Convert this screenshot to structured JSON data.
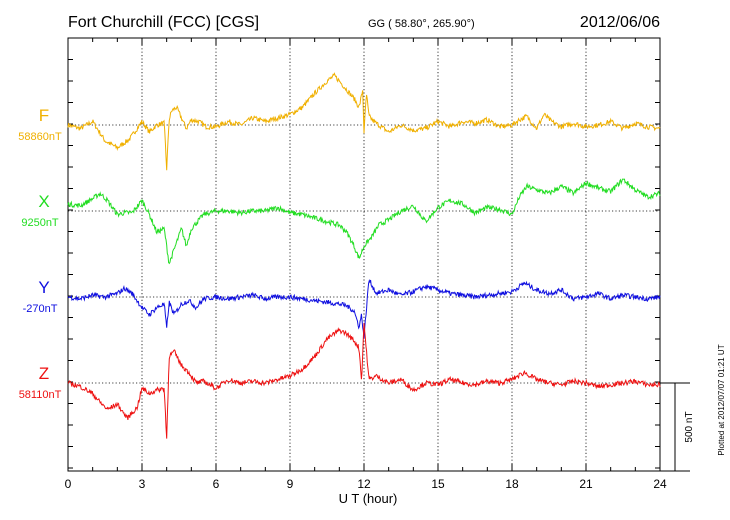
{
  "header": {
    "station": "Fort Churchill (FCC)  [CGS]",
    "coords": "GG ( 58.80°, 265.90°)",
    "date": "2012/06/06"
  },
  "footer_note": "Plotted at 2012/07/07 01:21  UT",
  "scale_label": "500 nT",
  "chart_data": {
    "type": "line",
    "xlabel": "U T (hour)",
    "ylabel": "",
    "xlim": [
      0,
      24
    ],
    "x_ticks": [
      0,
      3,
      6,
      9,
      12,
      15,
      18,
      21,
      24
    ],
    "x_tick_labels": [
      "0",
      "3",
      "6",
      "9",
      "12",
      "15",
      "18",
      "21",
      "24"
    ],
    "grid": true,
    "scale_bar_nT": 500,
    "series": [
      {
        "name": "F",
        "baseline_label": "58860nT",
        "baseline_nT": 58860,
        "color": "#f0b000",
        "x": [
          0,
          0.5,
          1,
          1.5,
          2,
          2.5,
          2.8,
          3,
          3.3,
          3.6,
          3.9,
          4.0,
          4.1,
          4.2,
          4.4,
          4.6,
          4.8,
          5,
          5.3,
          5.6,
          6,
          6.5,
          7,
          7.5,
          8,
          8.5,
          9,
          9.5,
          10,
          10.5,
          10.8,
          11,
          11.3,
          11.6,
          11.8,
          11.95,
          12.0,
          12.1,
          12.2,
          12.4,
          12.7,
          13,
          13.5,
          14,
          14.5,
          15,
          15.5,
          16,
          16.5,
          17,
          17.5,
          18,
          18.3,
          18.6,
          19,
          19.3,
          19.6,
          20,
          20.5,
          21,
          21.5,
          22,
          22.5,
          23,
          23.5,
          24
        ],
        "values": [
          0,
          -20,
          20,
          -90,
          -130,
          -80,
          -20,
          20,
          -40,
          0,
          10,
          -250,
          30,
          80,
          100,
          40,
          -20,
          30,
          20,
          -10,
          -10,
          20,
          0,
          40,
          20,
          40,
          60,
          100,
          180,
          250,
          280,
          250,
          200,
          150,
          100,
          200,
          -40,
          180,
          50,
          20,
          -10,
          -40,
          0,
          -30,
          -20,
          20,
          -10,
          20,
          10,
          30,
          -10,
          0,
          30,
          50,
          -20,
          60,
          20,
          -10,
          10,
          -10,
          0,
          20,
          -20,
          10,
          -10,
          -20
        ]
      },
      {
        "name": "X",
        "baseline_label": "9250nT",
        "baseline_nT": 9250,
        "color": "#22dd22",
        "x": [
          0,
          0.5,
          1,
          1.3,
          1.6,
          2,
          2.3,
          2.6,
          3,
          3.3,
          3.6,
          3.9,
          4.0,
          4.1,
          4.3,
          4.6,
          4.8,
          5,
          5.5,
          6,
          6.5,
          7,
          7.5,
          8,
          8.5,
          9,
          9.5,
          10,
          10.5,
          11,
          11.3,
          11.6,
          11.8,
          12,
          12.3,
          12.6,
          13,
          13.5,
          14,
          14.5,
          15,
          15.5,
          16,
          16.5,
          17,
          17.5,
          18,
          18.3,
          18.6,
          19,
          19.5,
          20,
          20.5,
          21,
          21.5,
          22,
          22.5,
          23,
          23.5,
          24
        ],
        "values": [
          40,
          30,
          70,
          100,
          60,
          -20,
          -10,
          -10,
          60,
          -20,
          -120,
          -100,
          -200,
          -300,
          -220,
          -100,
          -200,
          -100,
          -20,
          0,
          0,
          -10,
          0,
          0,
          20,
          -10,
          -20,
          -40,
          -60,
          -80,
          -120,
          -200,
          -270,
          -200,
          -150,
          -80,
          -50,
          0,
          30,
          -60,
          20,
          60,
          40,
          -10,
          20,
          10,
          -20,
          80,
          140,
          120,
          100,
          140,
          100,
          160,
          130,
          110,
          180,
          120,
          80,
          100
        ]
      },
      {
        "name": "Y",
        "baseline_label": "-270nT",
        "baseline_nT": -270,
        "color": "#1010e0",
        "x": [
          0,
          0.5,
          1,
          1.5,
          2,
          2.3,
          2.6,
          3,
          3.3,
          3.6,
          3.9,
          4.0,
          4.1,
          4.3,
          4.6,
          4.9,
          5.2,
          5.5,
          6,
          6.5,
          7,
          7.5,
          8,
          8.5,
          9,
          9.5,
          10,
          10.5,
          11,
          11.3,
          11.6,
          11.8,
          11.9,
          12.0,
          12.2,
          12.5,
          13,
          13.5,
          14,
          14.5,
          15,
          15.5,
          16,
          16.5,
          17,
          17.5,
          18,
          18.5,
          19,
          19.5,
          20,
          20.5,
          21,
          21.5,
          22,
          22.5,
          23,
          23.5,
          24
        ],
        "values": [
          0,
          -10,
          10,
          0,
          20,
          50,
          20,
          -60,
          -100,
          -60,
          -40,
          -180,
          -30,
          -100,
          -40,
          -20,
          -60,
          -10,
          0,
          -10,
          0,
          10,
          -10,
          0,
          0,
          -10,
          -20,
          -30,
          -40,
          -50,
          -80,
          -170,
          -100,
          -230,
          100,
          20,
          40,
          10,
          30,
          60,
          40,
          20,
          10,
          0,
          10,
          20,
          30,
          80,
          40,
          20,
          40,
          -10,
          0,
          20,
          -10,
          10,
          0,
          -10,
          0
        ]
      },
      {
        "name": "Z",
        "baseline_label": "58110nT",
        "baseline_nT": 58110,
        "color": "#ee1111",
        "x": [
          0,
          0.5,
          1,
          1.3,
          1.6,
          2,
          2.4,
          2.8,
          3,
          3.3,
          3.6,
          3.9,
          4.0,
          4.1,
          4.3,
          4.6,
          4.9,
          5.2,
          5.5,
          6,
          6.5,
          7,
          7.5,
          8,
          8.5,
          9,
          9.5,
          10,
          10.5,
          11,
          11.3,
          11.6,
          11.8,
          11.9,
          12.0,
          12.2,
          12.5,
          13,
          13.5,
          14,
          14.5,
          15,
          15.5,
          16,
          16.5,
          17,
          17.5,
          18,
          18.5,
          19,
          19.5,
          20,
          20.5,
          21,
          21.5,
          22,
          22.5,
          23,
          23.5,
          24
        ],
        "values": [
          0,
          -20,
          -60,
          -110,
          -150,
          -120,
          -200,
          -140,
          -30,
          -60,
          -40,
          -30,
          -320,
          150,
          180,
          100,
          60,
          0,
          10,
          -30,
          20,
          0,
          10,
          0,
          20,
          40,
          80,
          150,
          250,
          300,
          280,
          240,
          200,
          10,
          340,
          20,
          40,
          0,
          20,
          -40,
          0,
          -10,
          20,
          0,
          -10,
          10,
          0,
          20,
          60,
          20,
          0,
          -10,
          10,
          0,
          -20,
          -10,
          0,
          10,
          -10,
          -10
        ]
      }
    ]
  }
}
